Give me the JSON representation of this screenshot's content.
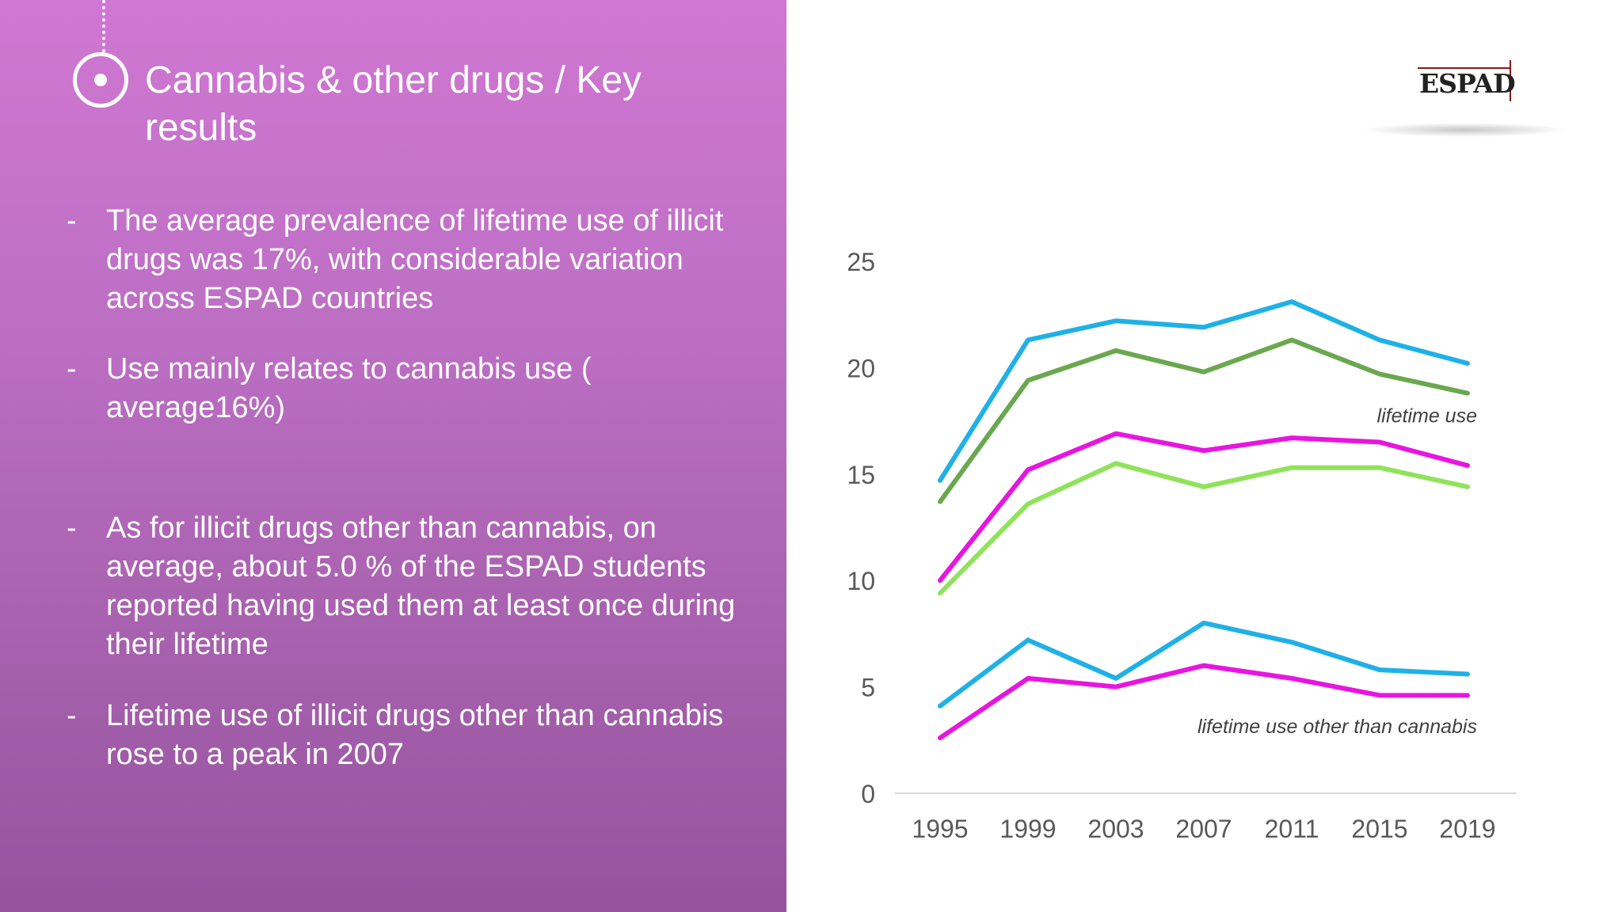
{
  "header": {
    "title": "Cannabis & other drugs / Key results"
  },
  "bullets": [
    {
      "dash": "-",
      "text": "The  average prevalence of lifetime use of illicit drugs was 17%, with considerable variation across ESPAD countries"
    },
    {
      "dash": "-",
      "text": "Use mainly relates to cannabis use ( average16%)"
    },
    {
      "dash": "-",
      "text": "As for illicit drugs other than cannabis, on average, about 5.0 % of the ESPAD students reported having used them at least once during their lifetime"
    },
    {
      "dash": "-",
      "text": "Lifetime use of illicit drugs other than cannabis rose to a peak in 2007"
    }
  ],
  "logo": {
    "text": "ESPAD"
  },
  "chart_data": {
    "type": "line",
    "title": "",
    "xlabel": "",
    "ylabel": "",
    "x": [
      "1995",
      "1999",
      "2003",
      "2007",
      "2011",
      "2015",
      "2019"
    ],
    "ylim": [
      0,
      25
    ],
    "yticks": [
      0,
      5,
      10,
      15,
      20,
      25
    ],
    "grid": false,
    "series": [
      {
        "color": "#1fb1e6",
        "values": [
          14.7,
          21.3,
          22.2,
          21.9,
          23.1,
          21.3,
          20.2
        ]
      },
      {
        "color": "#6aa84f",
        "values": [
          13.7,
          19.4,
          20.8,
          19.8,
          21.3,
          19.7,
          18.8
        ]
      },
      {
        "color": "#e815e0",
        "values": [
          10.0,
          15.2,
          16.9,
          16.1,
          16.7,
          16.5,
          15.4
        ]
      },
      {
        "color": "#8fe35a",
        "values": [
          9.4,
          13.6,
          15.5,
          14.4,
          15.3,
          15.3,
          14.4
        ]
      },
      {
        "color": "#1fb1e6",
        "values": [
          4.1,
          7.2,
          5.4,
          8.0,
          7.1,
          5.8,
          5.6
        ]
      },
      {
        "color": "#e815e0",
        "values": [
          2.6,
          5.4,
          5.0,
          6.0,
          5.4,
          4.6,
          4.6
        ]
      }
    ],
    "annotations": [
      {
        "text": "lifetime use",
        "near_value": 17.8
      },
      {
        "text": "lifetime use other than cannabis",
        "near_value": 3.2
      }
    ]
  }
}
